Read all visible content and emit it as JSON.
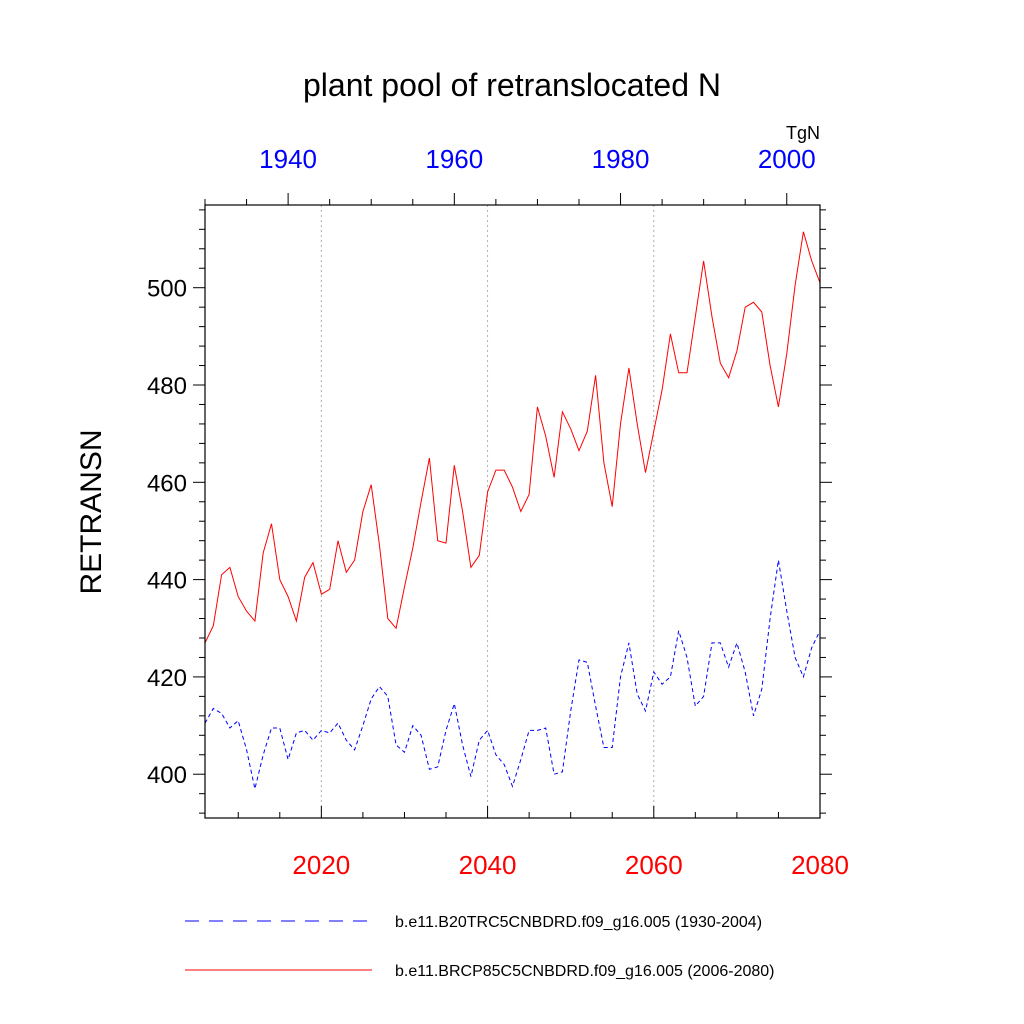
{
  "chart_data": {
    "type": "line",
    "title": "plant pool of retranslocated N",
    "units": "TgN",
    "ylabel": "RETRANSN",
    "ylim": [
      391,
      517
    ],
    "yticks": [
      400,
      420,
      440,
      460,
      480,
      500
    ],
    "bottom_axis": {
      "xlim": [
        2006,
        2080
      ],
      "ticks": [
        2020,
        2040,
        2060,
        2080
      ],
      "color": "#ff0000"
    },
    "top_axis": {
      "xlim": [
        1930,
        2004
      ],
      "ticks": [
        1940,
        1960,
        1980,
        2000
      ],
      "color": "#0000ff"
    },
    "grid": "vertical dotted at bottom-axis major ticks",
    "legend_position": "bottom",
    "series": [
      {
        "name": "b.e11.B20TRC5CNBDRD.f09_g16.005 (1930-2004)",
        "axis": "top",
        "color": "#0000ff",
        "dash": "dashed",
        "x": [
          1930,
          1931,
          1932,
          1933,
          1934,
          1935,
          1936,
          1937,
          1938,
          1939,
          1940,
          1941,
          1942,
          1943,
          1944,
          1945,
          1946,
          1947,
          1948,
          1949,
          1950,
          1951,
          1952,
          1953,
          1954,
          1955,
          1956,
          1957,
          1958,
          1959,
          1960,
          1961,
          1962,
          1963,
          1964,
          1965,
          1966,
          1967,
          1968,
          1969,
          1970,
          1971,
          1972,
          1973,
          1974,
          1975,
          1976,
          1977,
          1978,
          1979,
          1980,
          1981,
          1982,
          1983,
          1984,
          1985,
          1986,
          1987,
          1988,
          1989,
          1990,
          1991,
          1992,
          1993,
          1994,
          1995,
          1996,
          1997,
          1998,
          1999,
          2000,
          2001,
          2002,
          2003,
          2004
        ],
        "values": [
          410.5,
          413.5,
          412.5,
          409.5,
          411,
          405,
          397,
          404,
          409.5,
          409.5,
          403,
          408.5,
          409,
          407,
          409,
          408.5,
          410.5,
          407,
          405,
          410,
          415.5,
          418,
          416,
          406,
          404.5,
          410,
          408,
          401,
          401.5,
          409,
          414.5,
          406,
          399.5,
          407,
          409,
          404,
          402,
          397.5,
          403,
          409,
          409,
          409.5,
          400,
          400.5,
          413,
          423.5,
          423,
          414,
          405.5,
          405.5,
          420,
          427,
          416.5,
          413,
          421,
          418.5,
          420,
          429.5,
          424,
          414,
          416,
          427,
          427,
          422,
          427,
          421,
          412,
          417.5,
          432,
          444,
          433.5,
          424,
          420,
          426,
          429.5
        ]
      },
      {
        "name": "b.e11.BRCP85C5CNBDRD.f09_g16.005 (2006-2080)",
        "axis": "bottom",
        "color": "#ff0000",
        "dash": "solid",
        "x": [
          2006,
          2007,
          2008,
          2009,
          2010,
          2011,
          2012,
          2013,
          2014,
          2015,
          2016,
          2017,
          2018,
          2019,
          2020,
          2021,
          2022,
          2023,
          2024,
          2025,
          2026,
          2027,
          2028,
          2029,
          2030,
          2031,
          2032,
          2033,
          2034,
          2035,
          2036,
          2037,
          2038,
          2039,
          2040,
          2041,
          2042,
          2043,
          2044,
          2045,
          2046,
          2047,
          2048,
          2049,
          2050,
          2051,
          2052,
          2053,
          2054,
          2055,
          2056,
          2057,
          2058,
          2059,
          2060,
          2061,
          2062,
          2063,
          2064,
          2065,
          2066,
          2067,
          2068,
          2069,
          2070,
          2071,
          2072,
          2073,
          2074,
          2075,
          2076,
          2077,
          2078,
          2079,
          2080
        ],
        "values": [
          427,
          430.5,
          441,
          442.5,
          436.5,
          433.5,
          431.5,
          445.5,
          451.5,
          440,
          436.5,
          431.5,
          440.5,
          443.5,
          437,
          438,
          448,
          441.5,
          444,
          454,
          459.5,
          447,
          432,
          430,
          438.5,
          446.5,
          456,
          465,
          448,
          447.5,
          463.5,
          454,
          442.5,
          445,
          458,
          462.5,
          462.5,
          459,
          454,
          457.5,
          475.5,
          469.5,
          461,
          474.5,
          471,
          466.5,
          470.5,
          482,
          464,
          455,
          472,
          483.5,
          472,
          462,
          470.5,
          479,
          490.5,
          482.5,
          482.5,
          494,
          505.5,
          494,
          484.5,
          481.5,
          487,
          496,
          497,
          495,
          484,
          475.5,
          486.5,
          500.5,
          511.5,
          505.5,
          501
        ]
      }
    ]
  }
}
